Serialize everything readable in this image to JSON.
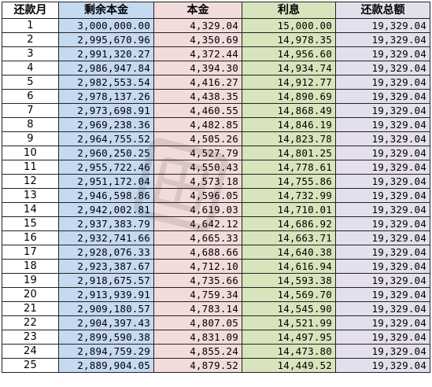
{
  "headers": {
    "month": "还款月",
    "remaining": "剩余本金",
    "principal": "本金",
    "interest": "利息",
    "total": "还款总额"
  },
  "rows": [
    {
      "month": "1",
      "remaining": "3,000,000.00",
      "principal": "4,329.04",
      "interest": "15,000.00",
      "total": "19,329.04"
    },
    {
      "month": "2",
      "remaining": "2,995,670.96",
      "principal": "4,350.69",
      "interest": "14,978.35",
      "total": "19,329.04"
    },
    {
      "month": "3",
      "remaining": "2,991,320.27",
      "principal": "4,372.44",
      "interest": "14,956.60",
      "total": "19,329.04"
    },
    {
      "month": "4",
      "remaining": "2,986,947.84",
      "principal": "4,394.30",
      "interest": "14,934.74",
      "total": "19,329.04"
    },
    {
      "month": "5",
      "remaining": "2,982,553.54",
      "principal": "4,416.27",
      "interest": "14,912.77",
      "total": "19,329.04"
    },
    {
      "month": "6",
      "remaining": "2,978,137.26",
      "principal": "4,438.35",
      "interest": "14,890.69",
      "total": "19,329.04"
    },
    {
      "month": "7",
      "remaining": "2,973,698.91",
      "principal": "4,460.55",
      "interest": "14,868.49",
      "total": "19,329.04"
    },
    {
      "month": "8",
      "remaining": "2,969,238.36",
      "principal": "4,482.85",
      "interest": "14,846.19",
      "total": "19,329.04"
    },
    {
      "month": "9",
      "remaining": "2,964,755.52",
      "principal": "4,505.26",
      "interest": "14,823.78",
      "total": "19,329.04"
    },
    {
      "month": "10",
      "remaining": "2,960,250.25",
      "principal": "4,527.79",
      "interest": "14,801.25",
      "total": "19,329.04"
    },
    {
      "month": "11",
      "remaining": "2,955,722.46",
      "principal": "4,550.43",
      "interest": "14,778.61",
      "total": "19,329.04"
    },
    {
      "month": "12",
      "remaining": "2,951,172.04",
      "principal": "4,573.18",
      "interest": "14,755.86",
      "total": "19,329.04"
    },
    {
      "month": "13",
      "remaining": "2,946,598.86",
      "principal": "4,596.05",
      "interest": "14,732.99",
      "total": "19,329.04"
    },
    {
      "month": "14",
      "remaining": "2,942,002.81",
      "principal": "4,619.03",
      "interest": "14,710.01",
      "total": "19,329.04"
    },
    {
      "month": "15",
      "remaining": "2,937,383.79",
      "principal": "4,642.12",
      "interest": "14,686.92",
      "total": "19,329.04"
    },
    {
      "month": "16",
      "remaining": "2,932,741.66",
      "principal": "4,665.33",
      "interest": "14,663.71",
      "total": "19,329.04"
    },
    {
      "month": "17",
      "remaining": "2,928,076.33",
      "principal": "4,688.66",
      "interest": "14,640.38",
      "total": "19,329.04"
    },
    {
      "month": "18",
      "remaining": "2,923,387.67",
      "principal": "4,712.10",
      "interest": "14,616.94",
      "total": "19,329.04"
    },
    {
      "month": "19",
      "remaining": "2,918,675.57",
      "principal": "4,735.66",
      "interest": "14,593.38",
      "total": "19,329.04"
    },
    {
      "month": "20",
      "remaining": "2,913,939.91",
      "principal": "4,759.34",
      "interest": "14,569.70",
      "total": "19,329.04"
    },
    {
      "month": "21",
      "remaining": "2,909,180.57",
      "principal": "4,783.14",
      "interest": "14,545.90",
      "total": "19,329.04"
    },
    {
      "month": "22",
      "remaining": "2,904,397.43",
      "principal": "4,807.05",
      "interest": "14,521.99",
      "total": "19,329.04"
    },
    {
      "month": "23",
      "remaining": "2,899,590.38",
      "principal": "4,831.09",
      "interest": "14,497.95",
      "total": "19,329.04"
    },
    {
      "month": "24",
      "remaining": "2,894,759.29",
      "principal": "4,855.24",
      "interest": "14,473.80",
      "total": "19,329.04"
    },
    {
      "month": "25",
      "remaining": "2,889,904.05",
      "principal": "4,879.52",
      "interest": "14,449.52",
      "total": "19,329.04"
    }
  ],
  "colors": {
    "remaining_bg": "#c5d9f1",
    "principal_bg": "#f2dcdb",
    "interest_bg": "#d8e4bc",
    "total_bg": "#e4dfec",
    "grid_line": "#222222"
  },
  "watermark": {
    "icon": "watermark-logo-icon"
  }
}
